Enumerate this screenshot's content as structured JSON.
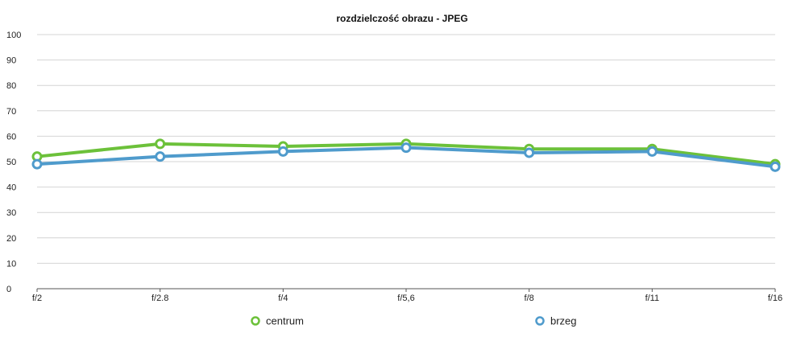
{
  "chart_data": {
    "type": "line",
    "title": "rozdzielczość obrazu - JPEG",
    "xlabel": "",
    "ylabel": "",
    "categories": [
      "f/2",
      "f/2.8",
      "f/4",
      "f/5,6",
      "f/8",
      "f/11",
      "f/16"
    ],
    "ylim": [
      0,
      100
    ],
    "yticks": [
      0,
      10,
      20,
      30,
      40,
      50,
      60,
      70,
      80,
      90,
      100
    ],
    "grid": true,
    "legend_position": "bottom",
    "series": [
      {
        "name": "centrum",
        "color": "#6cc13a",
        "values": [
          52,
          57,
          56,
          57,
          55,
          55,
          49
        ]
      },
      {
        "name": "brzeg",
        "color": "#4f9bcc",
        "values": [
          49,
          52,
          54,
          55.5,
          53.5,
          54,
          48
        ]
      }
    ]
  }
}
